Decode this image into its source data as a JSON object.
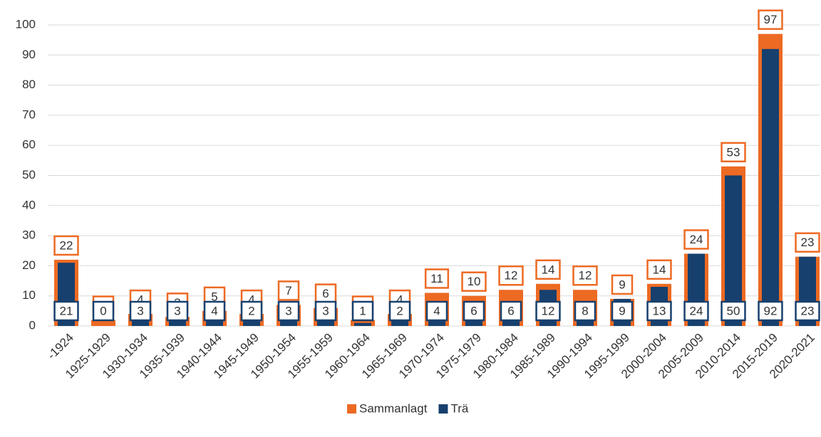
{
  "chart_data": {
    "type": "bar",
    "categories": [
      "-1924",
      "1925-1929",
      "1930-1934",
      "1935-1939",
      "1940-1944",
      "1945-1949",
      "1950-1954",
      "1955-1959",
      "1960-1964",
      "1965-1969",
      "1970-1974",
      "1975-1979",
      "1980-1984",
      "1985-1989",
      "1990-1994",
      "1995-1999",
      "2000-2004",
      "2005-2009",
      "2010-2014",
      "2015-2019",
      "2020-2021"
    ],
    "series": [
      {
        "name": "Sammanlagt",
        "color": "#ed6a23",
        "values": [
          22,
          2,
          4,
          3,
          5,
          4,
          7,
          6,
          2,
          4,
          11,
          10,
          12,
          14,
          12,
          9,
          14,
          24,
          53,
          97,
          23
        ]
      },
      {
        "name": "Trä",
        "color": "#17406e",
        "values": [
          21,
          0,
          3,
          3,
          4,
          2,
          3,
          3,
          1,
          2,
          4,
          6,
          6,
          12,
          8,
          9,
          13,
          24,
          50,
          92,
          23
        ]
      }
    ],
    "ylim": [
      0,
      100
    ],
    "yticks": [
      0,
      10,
      20,
      30,
      40,
      50,
      60,
      70,
      80,
      90,
      100
    ],
    "grid": true,
    "legend": "bottom"
  }
}
